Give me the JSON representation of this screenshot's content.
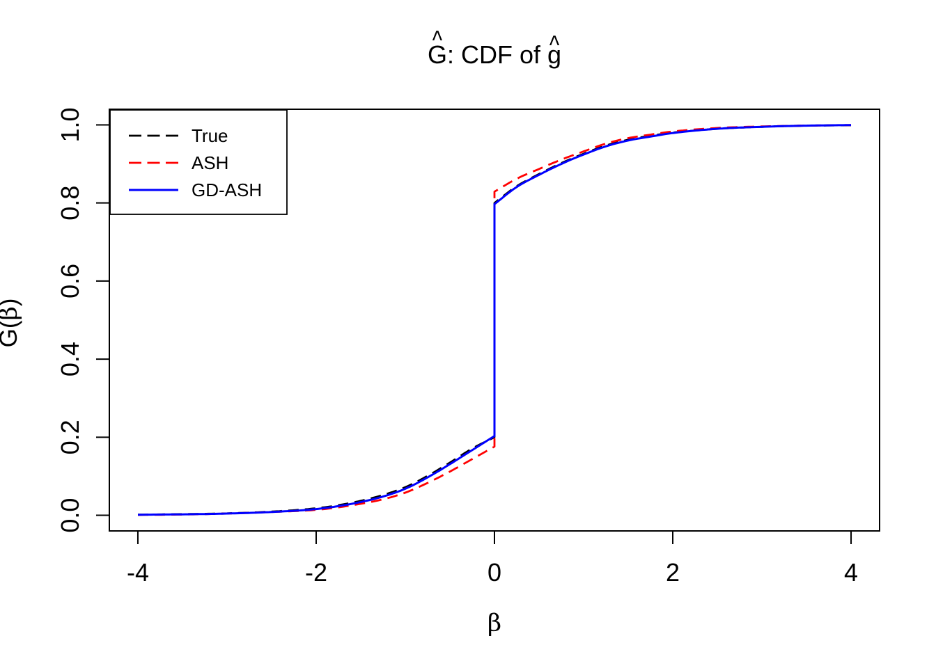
{
  "title": {
    "part1": "G",
    "hat1": "^",
    "part2": ": CDF of ",
    "part3": "g",
    "hat3": "^"
  },
  "axes": {
    "x_label": "β",
    "y_label_letter": "G",
    "y_label_hat": "^",
    "y_label_suffix_open": "(",
    "y_label_beta": "β",
    "y_label_suffix_close": ")"
  },
  "colors": {
    "true": "#000000",
    "ash": "#FF0000",
    "gdash": "#0000FF",
    "axis": "#000000",
    "background": "#FFFFFF"
  },
  "legend": {
    "entries": [
      {
        "label": "True",
        "color": "#000000",
        "style": "dashed"
      },
      {
        "label": "ASH",
        "color": "#FF0000",
        "style": "dashed"
      },
      {
        "label": "GD-ASH",
        "color": "#0000FF",
        "style": "solid"
      }
    ]
  },
  "chart_data": {
    "type": "line",
    "title": "Ĝ: CDF of ĝ",
    "xlabel": "β",
    "ylabel": "Ĝ(β)",
    "xlim": [
      -4,
      4
    ],
    "ylim": [
      0,
      1
    ],
    "x_ticks": [
      -4,
      -2,
      0,
      2,
      4
    ],
    "x_tick_labels": [
      "-4",
      "-2",
      "0",
      "2",
      "4"
    ],
    "y_ticks": [
      0,
      0.2,
      0.4,
      0.6,
      0.8,
      1
    ],
    "y_tick_labels": [
      "0.0",
      "0.2",
      "0.4",
      "0.6",
      "0.8",
      "1.0"
    ],
    "grid": false,
    "legend_position": "topleft",
    "jump_note": "all three CDFs jump vertically at x=0 from ~0.2 to ~0.8 (point mass at zero)",
    "series": [
      {
        "name": "True",
        "color": "#000000",
        "style": "dashed",
        "x": [
          -4,
          -3.5,
          -3,
          -2.5,
          -2,
          -1.75,
          -1.5,
          -1.25,
          -1,
          -0.75,
          -0.5,
          -0.25,
          0,
          0,
          0.25,
          0.5,
          0.75,
          1,
          1.25,
          1.5,
          1.75,
          2,
          2.5,
          3,
          3.5,
          4
        ],
        "values": [
          0.0015,
          0.003,
          0.005,
          0.0095,
          0.018,
          0.026,
          0.037,
          0.052,
          0.072,
          0.101,
          0.135,
          0.171,
          0.2,
          0.8,
          0.843,
          0.874,
          0.902,
          0.926,
          0.947,
          0.962,
          0.972,
          0.98,
          0.99,
          0.995,
          0.998,
          0.999
        ]
      },
      {
        "name": "ASH",
        "color": "#FF0000",
        "style": "dashed",
        "x": [
          -4,
          -3.5,
          -3,
          -2.5,
          -2,
          -1.75,
          -1.5,
          -1.25,
          -1,
          -0.75,
          -0.5,
          -0.25,
          0,
          0,
          0.25,
          0.5,
          0.75,
          1,
          1.25,
          1.5,
          1.75,
          2,
          2.5,
          3,
          3.5,
          4
        ],
        "values": [
          0.001,
          0.002,
          0.0045,
          0.0085,
          0.014,
          0.0205,
          0.0295,
          0.041,
          0.058,
          0.083,
          0.112,
          0.144,
          0.176,
          0.829,
          0.862,
          0.887,
          0.911,
          0.932,
          0.952,
          0.966,
          0.975,
          0.983,
          0.992,
          0.996,
          0.998,
          0.9995
        ]
      },
      {
        "name": "GD-ASH",
        "color": "#0000FF",
        "style": "solid",
        "x": [
          -4,
          -3.5,
          -3,
          -2.5,
          -2,
          -1.75,
          -1.5,
          -1.25,
          -1,
          -0.75,
          -0.5,
          -0.25,
          0,
          0,
          0.25,
          0.5,
          0.75,
          1,
          1.25,
          1.5,
          1.75,
          2,
          2.5,
          3,
          3.5,
          4
        ],
        "values": [
          0.0015,
          0.0025,
          0.0045,
          0.0085,
          0.016,
          0.0235,
          0.034,
          0.048,
          0.068,
          0.097,
          0.131,
          0.167,
          0.203,
          0.797,
          0.841,
          0.872,
          0.9,
          0.924,
          0.945,
          0.96,
          0.97,
          0.979,
          0.99,
          0.995,
          0.998,
          0.9995
        ]
      }
    ]
  }
}
